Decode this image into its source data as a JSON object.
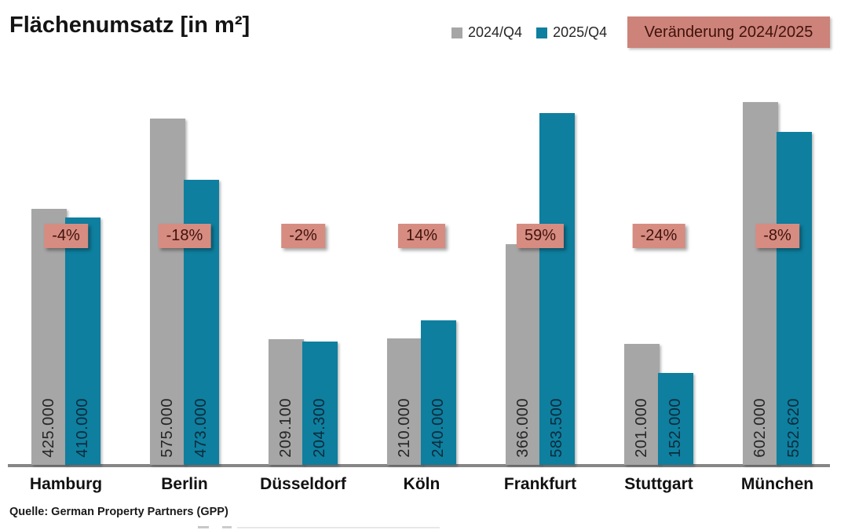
{
  "header": {
    "title": "Flächenumsatz [in m²]",
    "legend": [
      {
        "label": "2024/Q4",
        "color": "#a6a6a6"
      },
      {
        "label": "2025/Q4",
        "color": "#0e7f9f"
      }
    ],
    "change_badge": "Veränderung 2024/2025"
  },
  "chart_data": {
    "type": "bar",
    "title": "Flächenumsatz [in m²]",
    "categories": [
      "Hamburg",
      "Berlin",
      "Düsseldorf",
      "Köln",
      "Frankfurt",
      "Stuttgart",
      "München"
    ],
    "series": [
      {
        "name": "2024/Q4",
        "color": "#a6a6a6",
        "values": [
          425000,
          575000,
          209100,
          210000,
          366000,
          201000,
          602000
        ],
        "value_labels": [
          "425.000",
          "575.000",
          "209.100",
          "210.000",
          "366.000",
          "201.000",
          "602.000"
        ]
      },
      {
        "name": "2025/Q4",
        "color": "#0e7f9f",
        "values": [
          410000,
          473000,
          204300,
          240000,
          583500,
          152000,
          552620
        ],
        "value_labels": [
          "410.000",
          "473.000",
          "204.300",
          "240.000",
          "583.500",
          "152.000",
          "552.620"
        ]
      }
    ],
    "change_labels": [
      "-4%",
      "-18%",
      "-2%",
      "14%",
      "59%",
      "-24%",
      "-8%"
    ],
    "xlabel": "",
    "ylabel": "",
    "ylim": [
      0,
      620000
    ],
    "grid": false,
    "legend_position": "top-right",
    "value_label_orientation": "vertical"
  },
  "footer": {
    "source": "Quelle: German Property Partners (GPP)"
  },
  "colors": {
    "bar_2024": "#a6a6a6",
    "bar_2025": "#0e7f9f",
    "change_header_bg": "#cd8379",
    "pct_badge_bg": "#d68c81",
    "change_text": "#40120d",
    "axis_line": "#868686",
    "value_text_2024": "#262626",
    "value_text_2025": "#0b2b3c"
  }
}
